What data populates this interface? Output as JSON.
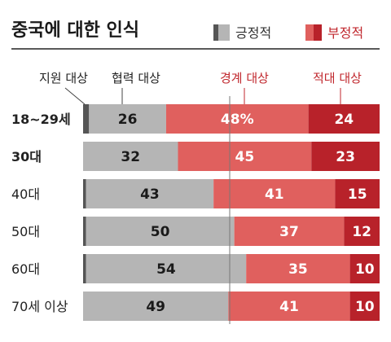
{
  "chart_data": {
    "type": "bar",
    "stacked": true,
    "orientation": "horizontal",
    "title": "중국에 대한 인식",
    "legend": [
      {
        "name": "긍정적",
        "colors": [
          "#555555",
          "#b5b5b5"
        ]
      },
      {
        "name": "부정적",
        "colors": [
          "#e0605e",
          "#b8222a"
        ]
      }
    ],
    "legend_placement": "top-right",
    "column_headers": [
      "지원 대상",
      "협력 대상",
      "경계 대상",
      "적대 대상"
    ],
    "categories": [
      "18~29세",
      "30대",
      "40대",
      "50대",
      "60대",
      "70세 이상"
    ],
    "bold_categories": [
      true,
      true,
      false,
      false,
      false,
      false
    ],
    "series": [
      {
        "name": "지원 대상",
        "color": "#555555",
        "values": [
          2,
          0,
          1,
          1,
          1,
          0
        ],
        "labels": [
          "",
          "",
          "",
          "",
          "",
          ""
        ]
      },
      {
        "name": "협력 대상",
        "color": "#b5b5b5",
        "values": [
          26,
          32,
          43,
          50,
          54,
          49
        ],
        "labels": [
          "26",
          "32",
          "43",
          "50",
          "54",
          "49"
        ]
      },
      {
        "name": "경계 대상",
        "color": "#e0605e",
        "values": [
          48,
          45,
          41,
          37,
          35,
          41
        ],
        "labels": [
          "48%",
          "45",
          "41",
          "37",
          "35",
          "41"
        ]
      },
      {
        "name": "적대 대상",
        "color": "#b8222a",
        "values": [
          24,
          23,
          15,
          12,
          10,
          10
        ],
        "labels": [
          "24",
          "23",
          "15",
          "12",
          "10",
          "10"
        ]
      }
    ],
    "xlim": [
      0,
      100
    ]
  }
}
